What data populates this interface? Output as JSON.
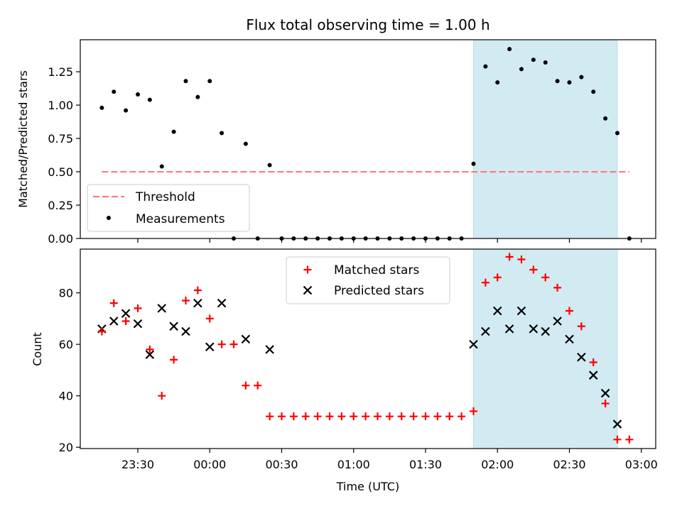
{
  "chart_data": [
    {
      "type": "scatter",
      "title": "Flux total observing time = 1.00 h",
      "xlabel": "",
      "ylabel": "Matched/Predicted stars",
      "ylim": [
        0,
        1.49
      ],
      "yticks": [
        "0.00",
        "0.25",
        "0.50",
        "0.75",
        "1.00",
        "1.25"
      ],
      "ytick_values": [
        0,
        0.25,
        0.5,
        0.75,
        1.0,
        1.25
      ],
      "legend_placement": "lower-left",
      "shaded_region": {
        "x_start": "01:50",
        "x_end": "02:50",
        "color": "#add8e6"
      },
      "threshold": {
        "name": "Threshold",
        "value": 0.5,
        "x_start": "23:15",
        "x_end": "02:55",
        "color": "#ff7b7b"
      },
      "series": [
        {
          "name": "Measurements",
          "color": "#000000",
          "x": [
            "23:15",
            "23:20",
            "23:25",
            "23:30",
            "23:35",
            "23:40",
            "23:45",
            "23:50",
            "23:55",
            "00:00",
            "00:05",
            "00:10",
            "00:15",
            "00:20",
            "00:25",
            "00:30",
            "00:35",
            "00:40",
            "00:45",
            "00:50",
            "00:55",
            "01:00",
            "01:05",
            "01:10",
            "01:15",
            "01:20",
            "01:25",
            "01:30",
            "01:35",
            "01:40",
            "01:45",
            "01:50",
            "01:55",
            "02:00",
            "02:05",
            "02:10",
            "02:15",
            "02:20",
            "02:25",
            "02:30",
            "02:35",
            "02:40",
            "02:45",
            "02:50",
            "02:55"
          ],
          "y": [
            0.98,
            1.1,
            0.96,
            1.08,
            1.04,
            0.54,
            0.8,
            1.18,
            1.06,
            1.18,
            0.79,
            0.0,
            0.71,
            0.0,
            0.55,
            0.0,
            0.0,
            0.0,
            0.0,
            0.0,
            0.0,
            0.0,
            0.0,
            0.0,
            0.0,
            0.0,
            0.0,
            0.0,
            0.0,
            0.0,
            0.0,
            0.56,
            1.29,
            1.17,
            1.42,
            1.27,
            1.34,
            1.32,
            1.18,
            1.17,
            1.21,
            1.1,
            0.9,
            0.79,
            0.0
          ]
        }
      ]
    },
    {
      "type": "scatter",
      "title": "",
      "xlabel": "Time (UTC)",
      "ylabel": "Count",
      "ylim": [
        19.5,
        97
      ],
      "yticks": [
        "20",
        "40",
        "60",
        "80"
      ],
      "ytick_values": [
        20,
        40,
        60,
        80
      ],
      "xlim": [
        "23:06",
        "03:06"
      ],
      "xticks": [
        "23:30",
        "00:00",
        "00:30",
        "01:00",
        "01:30",
        "02:00",
        "02:30",
        "03:00"
      ],
      "legend_placement": "upper-center",
      "shaded_region": {
        "x_start": "01:50",
        "x_end": "02:50",
        "color": "#add8e6"
      },
      "series": [
        {
          "name": "Matched stars",
          "color": "#ff0000",
          "marker": "plus",
          "x": [
            "23:15",
            "23:20",
            "23:25",
            "23:30",
            "23:35",
            "23:40",
            "23:45",
            "23:50",
            "23:55",
            "00:00",
            "00:05",
            "00:10",
            "00:15",
            "00:20",
            "00:25",
            "00:30",
            "00:35",
            "00:40",
            "00:45",
            "00:50",
            "00:55",
            "01:00",
            "01:05",
            "01:10",
            "01:15",
            "01:20",
            "01:25",
            "01:30",
            "01:35",
            "01:40",
            "01:45",
            "01:50",
            "01:55",
            "02:00",
            "02:05",
            "02:10",
            "02:15",
            "02:20",
            "02:25",
            "02:30",
            "02:35",
            "02:40",
            "02:45",
            "02:50",
            "02:55"
          ],
          "y": [
            65,
            76,
            69,
            74,
            58,
            40,
            54,
            77,
            81,
            70,
            60,
            60,
            44,
            44,
            32,
            32,
            32,
            32,
            32,
            32,
            32,
            32,
            32,
            32,
            32,
            32,
            32,
            32,
            32,
            32,
            32,
            34,
            84,
            86,
            94,
            93,
            89,
            86,
            82,
            73,
            67,
            53,
            37,
            23,
            23
          ]
        },
        {
          "name": "Predicted stars",
          "color": "#000000",
          "marker": "x",
          "x": [
            "23:15",
            "23:20",
            "23:25",
            "23:30",
            "23:35",
            "23:40",
            "23:45",
            "23:50",
            "23:55",
            "00:00",
            "00:05",
            "00:15",
            "00:25",
            "01:50",
            "01:55",
            "02:00",
            "02:05",
            "02:10",
            "02:15",
            "02:20",
            "02:25",
            "02:30",
            "02:35",
            "02:40",
            "02:45",
            "02:50"
          ],
          "y": [
            66,
            69,
            72,
            68,
            56,
            74,
            67,
            65,
            76,
            59,
            76,
            62,
            58,
            60,
            65,
            73,
            66,
            73,
            66,
            65,
            69,
            62,
            55,
            48,
            41,
            29
          ]
        }
      ]
    }
  ]
}
